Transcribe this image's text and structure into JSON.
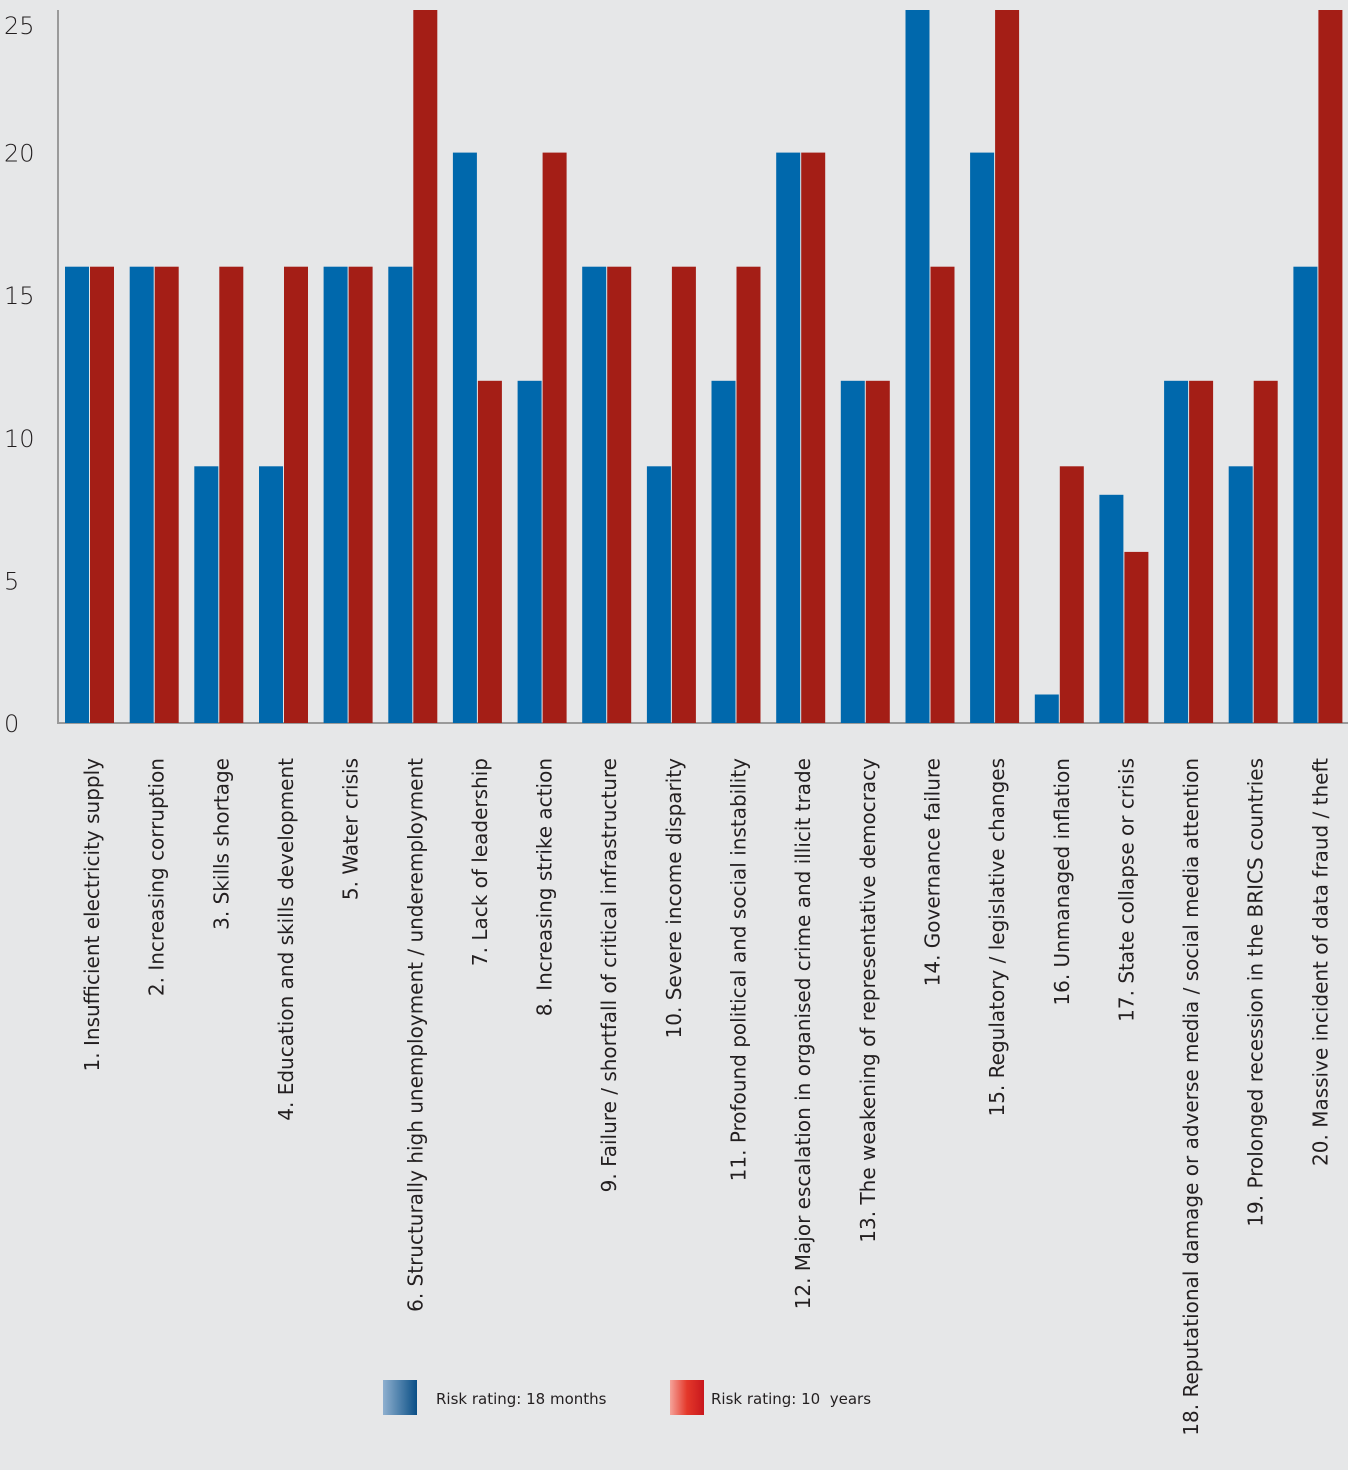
{
  "chart_data": {
    "type": "bar",
    "title": "",
    "xlabel": "",
    "ylabel": "",
    "ylim": [
      0,
      25
    ],
    "yticks": [
      "0",
      "5",
      "10",
      "15",
      "20",
      "25"
    ],
    "grid": false,
    "legend_position": "bottom",
    "categories": [
      "1. Insufficient electricity supply",
      "2. Increasing corruption",
      "3. Skills shortage",
      "4. Education and skills development",
      "5. Water crisis",
      "6. Structurally high unemployment / underemployment",
      "7. Lack of leadership",
      "8. Increasing strike action",
      "9. Failure / shortfall of critical infrastructure",
      "10. Severe income disparity",
      "11. Profound political and social instability",
      "12. Major escalation in organised crime and illicit trade",
      "13. The weakening of representative democracy",
      "14. Governance failure",
      "15. Regulatory / legislative changes",
      "16. Unmanaged inflation",
      "17. State collapse or crisis",
      "18. Reputational damage or adverse media / social media attention",
      "19. Prolonged recession in the BRICS countries",
      "20. Massive incident of data fraud / theft"
    ],
    "series": [
      {
        "name": "Risk rating: 18 months",
        "color": "#0068ac",
        "values": [
          16,
          16,
          9,
          9,
          16,
          16,
          20,
          12,
          16,
          9,
          12,
          20,
          12,
          25,
          20,
          1,
          8,
          12,
          9,
          16
        ]
      },
      {
        "name": "Risk rating: 10  years",
        "color": "#a41e16",
        "values": [
          16,
          16,
          16,
          16,
          16,
          25,
          12,
          20,
          16,
          16,
          16,
          20,
          12,
          16,
          25,
          9,
          6,
          12,
          12,
          25
        ]
      }
    ]
  }
}
